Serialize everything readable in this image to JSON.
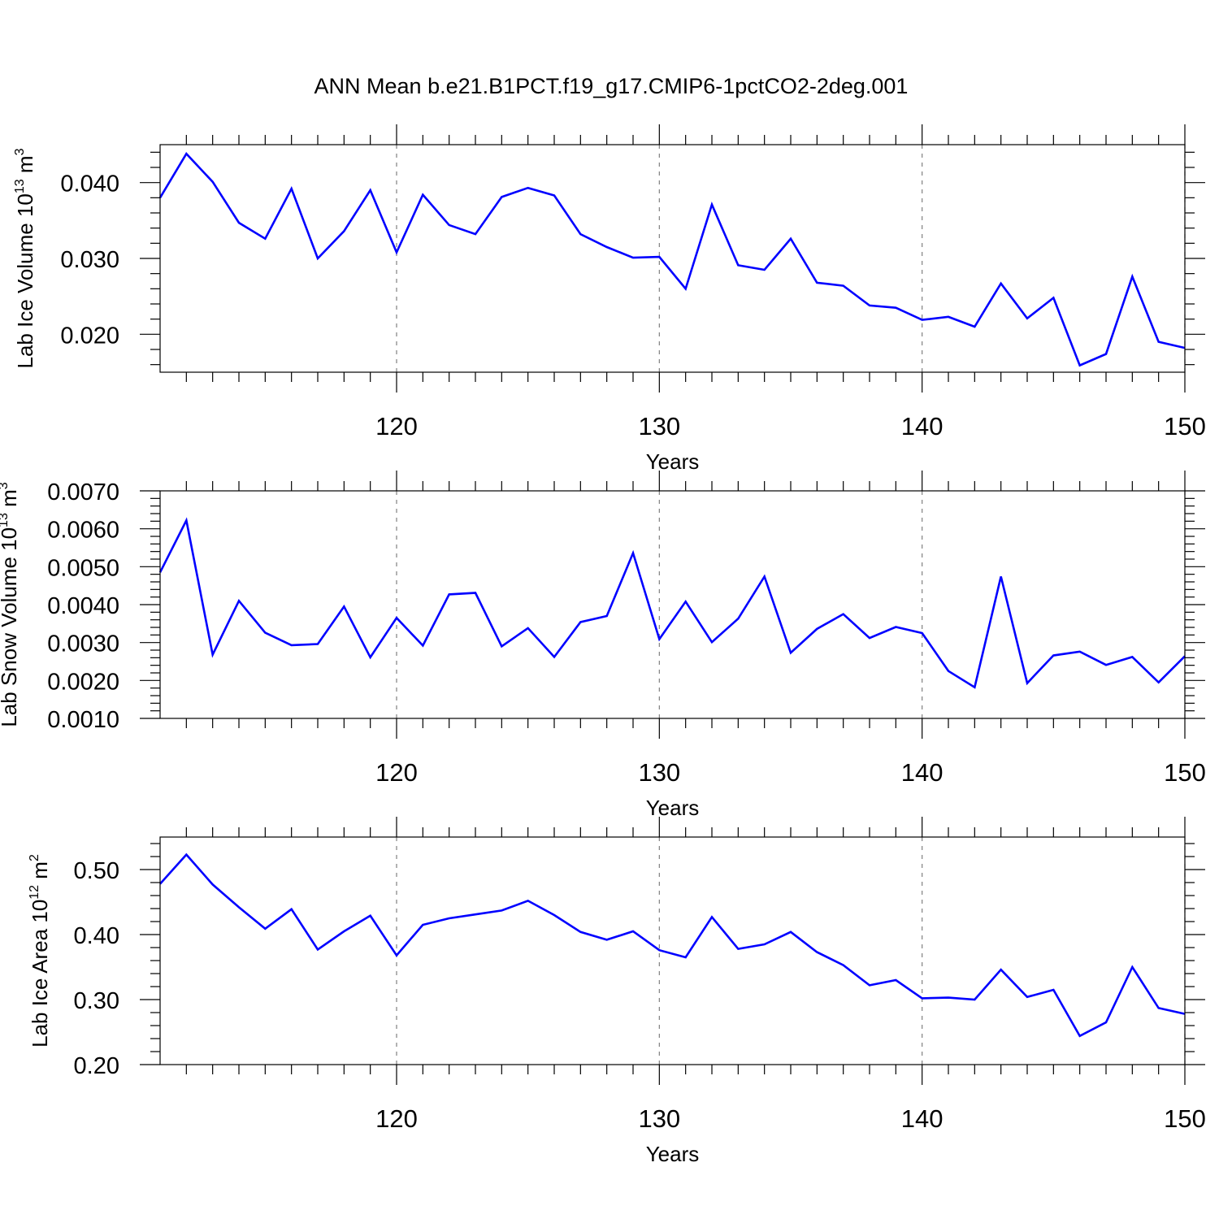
{
  "title": "ANN Mean b.e21.B1PCT.f19_g17.CMIP6-1pctCO2-2deg.001",
  "colors": {
    "series": "#0000ff",
    "axis": "#000000",
    "grid": "#808080",
    "background": "#ffffff"
  },
  "chart_data": [
    {
      "type": "line",
      "xlabel": "Years",
      "ylabel": "Lab Ice Volume 10",
      "ylabel_exp": "13",
      "ylabel_unit": " m",
      "ylabel_unit_exp": "3",
      "xlim": [
        111,
        150
      ],
      "ylim": [
        0.015,
        0.045
      ],
      "xticks": [
        120,
        130,
        140,
        150
      ],
      "xtick_labels": [
        "120",
        "130",
        "140",
        "150"
      ],
      "yticks": [
        0.02,
        0.03,
        0.04
      ],
      "ytick_labels": [
        "0.020",
        "0.030",
        "0.040"
      ],
      "grid": "vertical dashed at major x ticks",
      "x": [
        111,
        112,
        113,
        114,
        115,
        116,
        117,
        118,
        119,
        120,
        121,
        122,
        123,
        124,
        125,
        126,
        127,
        128,
        129,
        130,
        131,
        132,
        133,
        134,
        135,
        136,
        137,
        138,
        139,
        140,
        141,
        142,
        143,
        144,
        145,
        146,
        147,
        148,
        149,
        150
      ],
      "series": [
        {
          "values": [
            0.038,
            0.0438,
            0.0401,
            0.0347,
            0.0326,
            0.0392,
            0.03,
            0.0336,
            0.039,
            0.0308,
            0.0384,
            0.0344,
            0.0332,
            0.0381,
            0.0393,
            0.0383,
            0.0332,
            0.0315,
            0.0301,
            0.0302,
            0.026,
            0.0371,
            0.0291,
            0.0285,
            0.0326,
            0.0268,
            0.0264,
            0.0238,
            0.0235,
            0.0219,
            0.0223,
            0.021,
            0.0267,
            0.0221,
            0.0248,
            0.0159,
            0.0174,
            0.0276,
            0.019,
            0.0182
          ]
        }
      ]
    },
    {
      "type": "line",
      "xlabel": "Years",
      "ylabel": "Lab Snow Volume 10",
      "ylabel_exp": "13",
      "ylabel_unit": " m",
      "ylabel_unit_exp": "3",
      "xlim": [
        111,
        150
      ],
      "ylim": [
        0.001,
        0.007
      ],
      "xticks": [
        120,
        130,
        140,
        150
      ],
      "xtick_labels": [
        "120",
        "130",
        "140",
        "150"
      ],
      "yticks": [
        0.001,
        0.002,
        0.003,
        0.004,
        0.005,
        0.006,
        0.007
      ],
      "ytick_labels": [
        "0.0010",
        "0.0020",
        "0.0030",
        "0.0040",
        "0.0050",
        "0.0060",
        "0.0070"
      ],
      "grid": "vertical dashed at major x ticks",
      "x": [
        111,
        112,
        113,
        114,
        115,
        116,
        117,
        118,
        119,
        120,
        121,
        122,
        123,
        124,
        125,
        126,
        127,
        128,
        129,
        130,
        131,
        132,
        133,
        134,
        135,
        136,
        137,
        138,
        139,
        140,
        141,
        142,
        143,
        144,
        145,
        146,
        147,
        148,
        149,
        150
      ],
      "series": [
        {
          "values": [
            0.00485,
            0.00622,
            0.00268,
            0.0041,
            0.00326,
            0.00293,
            0.00296,
            0.00395,
            0.00261,
            0.00365,
            0.00292,
            0.00427,
            0.00431,
            0.0029,
            0.00338,
            0.00262,
            0.00354,
            0.0037,
            0.00536,
            0.00309,
            0.00408,
            0.00301,
            0.00363,
            0.00474,
            0.00273,
            0.00336,
            0.00375,
            0.00312,
            0.00341,
            0.00325,
            0.00225,
            0.00182,
            0.00474,
            0.00193,
            0.00266,
            0.00276,
            0.00241,
            0.00262,
            0.00195,
            0.00264
          ]
        }
      ]
    },
    {
      "type": "line",
      "xlabel": "Years",
      "ylabel": "Lab Ice Area 10",
      "ylabel_exp": "12",
      "ylabel_unit": " m",
      "ylabel_unit_exp": "2",
      "xlim": [
        111,
        150
      ],
      "ylim": [
        0.2,
        0.55
      ],
      "xticks": [
        120,
        130,
        140,
        150
      ],
      "xtick_labels": [
        "120",
        "130",
        "140",
        "150"
      ],
      "yticks": [
        0.2,
        0.3,
        0.4,
        0.5
      ],
      "ytick_labels": [
        "0.20",
        "0.30",
        "0.40",
        "0.50"
      ],
      "grid": "vertical dashed at major x ticks",
      "x": [
        111,
        112,
        113,
        114,
        115,
        116,
        117,
        118,
        119,
        120,
        121,
        122,
        123,
        124,
        125,
        126,
        127,
        128,
        129,
        130,
        131,
        132,
        133,
        134,
        135,
        136,
        137,
        138,
        139,
        140,
        141,
        142,
        143,
        144,
        145,
        146,
        147,
        148,
        149,
        150
      ],
      "series": [
        {
          "values": [
            0.478,
            0.523,
            0.477,
            0.442,
            0.409,
            0.439,
            0.377,
            0.405,
            0.429,
            0.368,
            0.415,
            0.425,
            0.431,
            0.437,
            0.452,
            0.43,
            0.404,
            0.392,
            0.405,
            0.376,
            0.365,
            0.427,
            0.378,
            0.385,
            0.404,
            0.373,
            0.353,
            0.322,
            0.33,
            0.302,
            0.303,
            0.3,
            0.346,
            0.304,
            0.315,
            0.244,
            0.265,
            0.35,
            0.287,
            0.278
          ]
        }
      ]
    }
  ]
}
